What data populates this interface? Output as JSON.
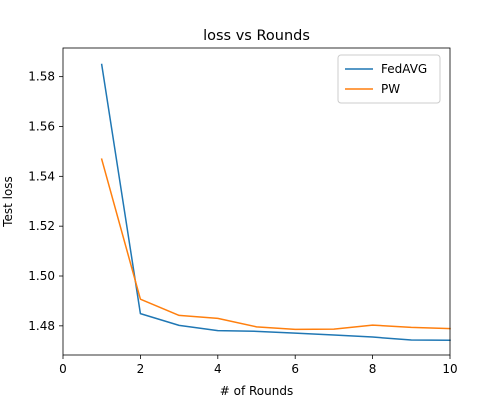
{
  "chart_data": {
    "type": "line",
    "title": "loss vs Rounds",
    "xlabel": "# of Rounds",
    "ylabel": "Test loss",
    "xlim": [
      0,
      10
    ],
    "ylim": [
      1.4683,
      1.5915
    ],
    "xticks": [
      0,
      2,
      4,
      6,
      8,
      10
    ],
    "yticks": [
      1.48,
      1.5,
      1.52,
      1.54,
      1.56,
      1.58
    ],
    "ytick_labels": [
      "1.48",
      "1.50",
      "1.52",
      "1.54",
      "1.56",
      "1.58"
    ],
    "grid": false,
    "legend_position": "top-right",
    "series": [
      {
        "name": "FedAVG",
        "color": "#1f77b4",
        "x": [
          1,
          2,
          3,
          4,
          5,
          6,
          7,
          8,
          9,
          10
        ],
        "y": [
          1.5849,
          1.4849,
          1.4802,
          1.4781,
          1.4778,
          1.4771,
          1.4763,
          1.4755,
          1.4743,
          1.4742
        ]
      },
      {
        "name": "PW",
        "color": "#ff7f0e",
        "x": [
          1,
          2,
          3,
          4,
          5,
          6,
          7,
          8,
          9,
          10
        ],
        "y": [
          1.5469,
          1.4907,
          1.4842,
          1.483,
          1.4796,
          1.4786,
          1.4787,
          1.4803,
          1.4794,
          1.4789
        ]
      }
    ]
  }
}
